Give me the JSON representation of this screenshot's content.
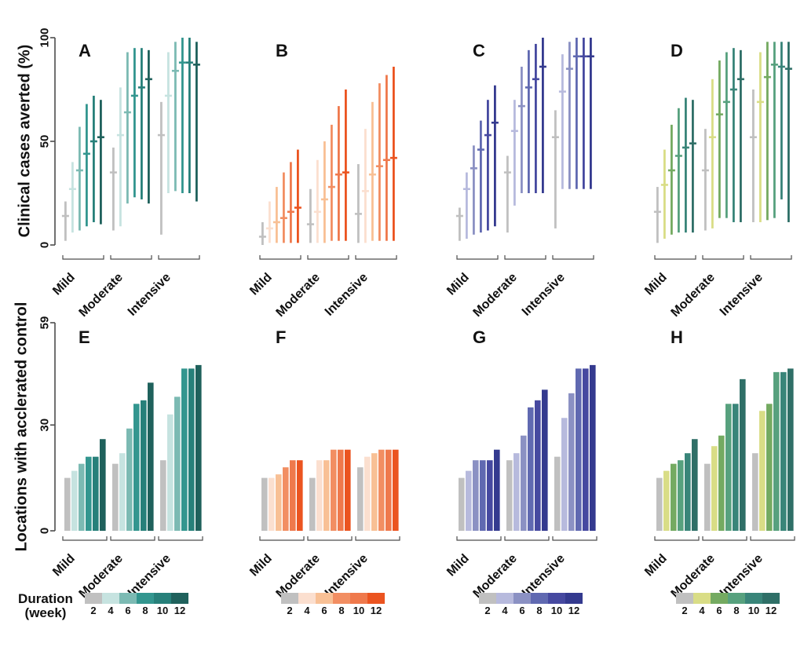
{
  "figure": {
    "top_ylabel": "Clinical cases averted (%)",
    "bottom_ylabel": "Locations with acclerated control",
    "top_yticks": [
      0,
      50,
      100
    ],
    "bottom_yticks": [
      0,
      30,
      59
    ],
    "groups": [
      "Mild",
      "Moderate",
      "Intensive"
    ],
    "legend": {
      "title_line1": "Duration",
      "title_line2": "(week)",
      "weeks": [
        "2",
        "4",
        "6",
        "8",
        "10",
        "12"
      ]
    },
    "palettes": {
      "teal": [
        "#c0c0c0",
        "#c6e3e0",
        "#7cbab3",
        "#33968f",
        "#27807a",
        "#1f615c"
      ],
      "orange": [
        "#c0c0c0",
        "#fbdfcf",
        "#f8c095",
        "#f28e62",
        "#ef794c",
        "#eb5420"
      ],
      "purple": [
        "#c0c0c0",
        "#b7badd",
        "#8b91c3",
        "#6069b1",
        "#4649a0",
        "#343a8f"
      ],
      "green": [
        "#c0c0c0",
        "#d9dd86",
        "#74aa61",
        "#57a17e",
        "#398579",
        "#2f6f67"
      ]
    }
  },
  "chart_data": [
    {
      "panel": "A",
      "type": "interval",
      "palette": "teal",
      "ylabel": "Clinical cases averted (%)",
      "ylim": [
        0,
        100
      ],
      "weeks": [
        2,
        4,
        6,
        8,
        10,
        12
      ],
      "groups": [
        {
          "name": "Mild",
          "low": [
            2,
            6,
            7,
            9,
            11,
            10
          ],
          "median": [
            14,
            27,
            36,
            44,
            50,
            52
          ],
          "high": [
            21,
            40,
            57,
            68,
            72,
            70
          ]
        },
        {
          "name": "Moderate",
          "low": [
            7,
            9,
            20,
            23,
            22,
            20
          ],
          "median": [
            35,
            53,
            64,
            72,
            76,
            80
          ],
          "high": [
            47,
            76,
            93,
            95,
            95,
            94
          ]
        },
        {
          "name": "Intensive",
          "low": [
            5,
            25,
            26,
            25,
            25,
            21
          ],
          "median": [
            53,
            72,
            84,
            88,
            88,
            87
          ],
          "high": [
            69,
            93,
            98,
            100,
            100,
            98
          ]
        }
      ]
    },
    {
      "panel": "B",
      "type": "interval",
      "palette": "orange",
      "ylabel": "Clinical cases averted (%)",
      "ylim": [
        0,
        100
      ],
      "weeks": [
        2,
        4,
        6,
        8,
        10,
        12
      ],
      "groups": [
        {
          "name": "Mild",
          "low": [
            0,
            1,
            1,
            1,
            1,
            1
          ],
          "median": [
            4,
            8,
            11,
            13,
            16,
            18
          ],
          "high": [
            11,
            21,
            28,
            35,
            40,
            46
          ]
        },
        {
          "name": "Moderate",
          "low": [
            1,
            1,
            1,
            2,
            2,
            2
          ],
          "median": [
            10,
            16,
            22,
            28,
            34,
            35
          ],
          "high": [
            27,
            41,
            50,
            58,
            67,
            75
          ]
        },
        {
          "name": "Intensive",
          "low": [
            1,
            1,
            2,
            2,
            2,
            2
          ],
          "median": [
            15,
            26,
            34,
            38,
            41,
            42
          ],
          "high": [
            39,
            56,
            69,
            78,
            82,
            86
          ]
        }
      ]
    },
    {
      "panel": "C",
      "type": "interval",
      "palette": "purple",
      "ylabel": "Clinical cases averted (%)",
      "ylim": [
        0,
        100
      ],
      "weeks": [
        2,
        4,
        6,
        8,
        10,
        12
      ],
      "groups": [
        {
          "name": "Mild",
          "low": [
            2,
            3,
            5,
            6,
            7,
            9
          ],
          "median": [
            14,
            27,
            37,
            46,
            53,
            59
          ],
          "high": [
            18,
            35,
            48,
            60,
            70,
            77
          ]
        },
        {
          "name": "Moderate",
          "low": [
            6,
            19,
            25,
            25,
            25,
            25
          ],
          "median": [
            35,
            55,
            67,
            76,
            80,
            86
          ],
          "high": [
            43,
            70,
            86,
            94,
            97,
            100
          ]
        },
        {
          "name": "Intensive",
          "low": [
            8,
            27,
            27,
            27,
            27,
            27
          ],
          "median": [
            52,
            74,
            85,
            91,
            91,
            91
          ],
          "high": [
            65,
            92,
            98,
            100,
            100,
            100
          ]
        }
      ]
    },
    {
      "panel": "D",
      "type": "interval",
      "palette": "green",
      "ylabel": "Clinical cases averted (%)",
      "ylim": [
        0,
        100
      ],
      "weeks": [
        2,
        4,
        6,
        8,
        10,
        12
      ],
      "groups": [
        {
          "name": "Mild",
          "low": [
            1,
            3,
            5,
            6,
            6,
            6
          ],
          "median": [
            16,
            29,
            36,
            43,
            47,
            49
          ],
          "high": [
            28,
            46,
            58,
            66,
            71,
            70
          ]
        },
        {
          "name": "Moderate",
          "low": [
            7,
            8,
            13,
            13,
            11,
            11
          ],
          "median": [
            36,
            52,
            63,
            69,
            75,
            80
          ],
          "high": [
            56,
            80,
            89,
            93,
            95,
            94
          ]
        },
        {
          "name": "Intensive",
          "low": [
            11,
            11,
            12,
            13,
            22,
            11
          ],
          "median": [
            52,
            69,
            81,
            87,
            86,
            85
          ],
          "high": [
            75,
            93,
            98,
            98,
            98,
            98
          ]
        }
      ]
    },
    {
      "panel": "E",
      "type": "bar",
      "palette": "teal",
      "ylabel": "Locations with acclerated control",
      "ylim": [
        0,
        59
      ],
      "weeks": [
        2,
        4,
        6,
        8,
        10,
        12
      ],
      "groups": [
        {
          "name": "Mild",
          "values": [
            15,
            17,
            19,
            21,
            21,
            26
          ]
        },
        {
          "name": "Moderate",
          "values": [
            19,
            22,
            29,
            36,
            37,
            42
          ]
        },
        {
          "name": "Intensive",
          "values": [
            20,
            33,
            38,
            46,
            46,
            47
          ]
        }
      ]
    },
    {
      "panel": "F",
      "type": "bar",
      "palette": "orange",
      "ylabel": "Locations with acclerated control",
      "ylim": [
        0,
        59
      ],
      "weeks": [
        2,
        4,
        6,
        8,
        10,
        12
      ],
      "groups": [
        {
          "name": "Mild",
          "values": [
            15,
            15,
            16,
            18,
            20,
            20
          ]
        },
        {
          "name": "Moderate",
          "values": [
            15,
            20,
            20,
            23,
            23,
            23
          ]
        },
        {
          "name": "Intensive",
          "values": [
            18,
            21,
            22,
            23,
            23,
            23
          ]
        }
      ]
    },
    {
      "panel": "G",
      "type": "bar",
      "palette": "purple",
      "ylabel": "Locations with acclerated control",
      "ylim": [
        0,
        59
      ],
      "weeks": [
        2,
        4,
        6,
        8,
        10,
        12
      ],
      "groups": [
        {
          "name": "Mild",
          "values": [
            15,
            17,
            20,
            20,
            20,
            23
          ]
        },
        {
          "name": "Moderate",
          "values": [
            20,
            22,
            27,
            35,
            37,
            40
          ]
        },
        {
          "name": "Intensive",
          "values": [
            21,
            32,
            39,
            46,
            46,
            47
          ]
        }
      ]
    },
    {
      "panel": "H",
      "type": "bar",
      "palette": "green",
      "ylabel": "Locations with acclerated control",
      "ylim": [
        0,
        59
      ],
      "weeks": [
        2,
        4,
        6,
        8,
        10,
        12
      ],
      "groups": [
        {
          "name": "Mild",
          "values": [
            15,
            17,
            19,
            20,
            22,
            26
          ]
        },
        {
          "name": "Moderate",
          "values": [
            19,
            24,
            27,
            36,
            36,
            43
          ]
        },
        {
          "name": "Intensive",
          "values": [
            22,
            34,
            36,
            45,
            45,
            46
          ]
        }
      ]
    }
  ]
}
